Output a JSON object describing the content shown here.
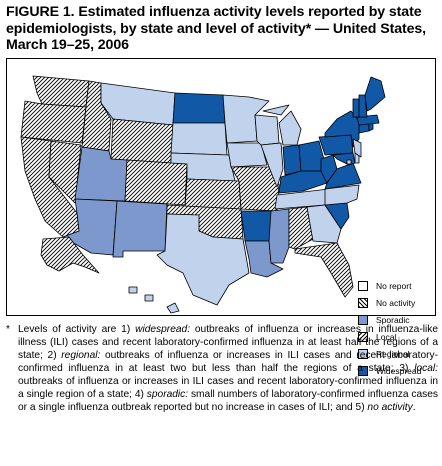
{
  "title": "FIGURE 1. Estimated influenza activity levels reported by state epidemiologists, by state and level of activity* — United States, March 19–25, 2006",
  "legend": [
    {
      "key": "no_report",
      "label": "No report"
    },
    {
      "key": "no_activity",
      "label": "No activity"
    },
    {
      "key": "sporadic",
      "label": "Sporadic"
    },
    {
      "key": "local",
      "label": "Local"
    },
    {
      "key": "regional",
      "label": "Regional"
    },
    {
      "key": "widespread",
      "label": "Widespread"
    }
  ],
  "colors": {
    "widespread": "#1158a7",
    "regional": "#c0d2ec",
    "sporadic": "#7d98cc",
    "local": "hatch",
    "no_activity": "crosshatch",
    "no_report": "#ffffff",
    "outline": "#000000"
  },
  "state_levels": {
    "WA": "local",
    "OR": "local",
    "CA": "local",
    "NV": "local",
    "ID": "local",
    "MT": "regional",
    "WY": "local",
    "UT": "sporadic",
    "CO": "local",
    "AZ": "sporadic",
    "NM": "sporadic",
    "ND": "widespread",
    "SD": "regional",
    "NE": "regional",
    "KS": "local",
    "OK": "local",
    "TX": "regional",
    "MN": "regional",
    "IA": "regional",
    "MO": "local",
    "AR": "widespread",
    "LA": "sporadic",
    "WI": "regional",
    "IL": "regional",
    "MS": "sporadic",
    "MI": "regional",
    "IN": "widespread",
    "KY": "widespread",
    "TN": "regional",
    "AL": "local",
    "OH": "widespread",
    "WV": "widespread",
    "GA": "regional",
    "FL": "local",
    "SC": "widespread",
    "NC": "regional",
    "VA": "widespread",
    "PA": "widespread",
    "NY": "widespread",
    "MD": "widespread",
    "DE": "regional",
    "NJ": "regional",
    "CT": "widespread",
    "RI": "widespread",
    "MA": "widespread",
    "VT": "widespread",
    "NH": "widespread",
    "ME": "widespread",
    "AK": "local",
    "HI": "regional",
    "DC": "regional"
  },
  "footnote": {
    "mark": "*",
    "lead": "Levels of activity are 1) ",
    "widespread_term": "widespread:",
    "widespread_text": " outbreaks of influenza or increases in influenza-like illness (ILI) cases and recent laboratory-confirmed influenza in at least half the regions of a state; 2) ",
    "regional_term": "regional:",
    "regional_text": " outbreaks of influenza or increases in ILI cases and recent laboratory-confirmed influenza in at least two but less than half the regions of a state; 3) ",
    "local_term": "local:",
    "local_text": " outbreaks of influenza or increases in ILI cases and recent laboratory-confirmed influenza in a single region of a state; 4) ",
    "sporadic_term": "sporadic:",
    "sporadic_text": " small numbers of laboratory-confirmed influenza cases or a single influenza outbreak reported but no increase in cases of ILI; and 5) ",
    "noactivity_term": "no activity",
    "end": "."
  }
}
